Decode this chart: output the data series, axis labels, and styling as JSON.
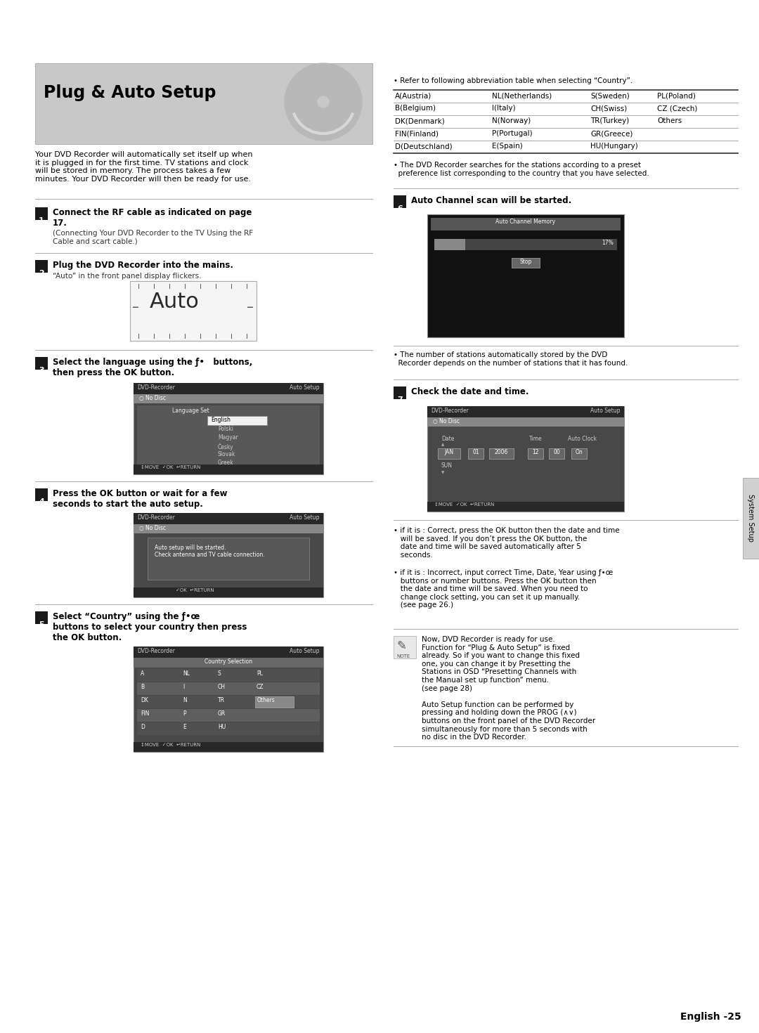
{
  "page_bg": "#ffffff",
  "title": "Plug & Auto Setup",
  "intro_text": "Your DVD Recorder will automatically set itself up when\nit is plugged in for the first time. TV stations and clock\nwill be stored in memory. The process takes a few\nminutes. Your DVD Recorder will then be ready for use.",
  "step1_num": "1",
  "step1_text": "Connect the RF cable as indicated on page\n17.",
  "step1_sub": "(Connecting Your DVD Recorder to the TV Using the RF\nCable and scart cable.)",
  "step2_num": "2",
  "step2_text": "Plug the DVD Recorder into the mains.",
  "step2_sub": "“Auto” in the front panel display flickers.",
  "step3_num": "3",
  "step3_text": "Select the language using the ƒ•   buttons,\nthen press the OK button.",
  "step4_num": "4",
  "step4_text": "Press the OK button or wait for a few\nseconds to start the auto setup.",
  "step5_num": "5",
  "step5_text": "Select “Country” using the ƒ•œ\nbuttons to select your country then press\nthe OK button.",
  "step6_num": "6",
  "step6_text": "Auto Channel scan will be started.",
  "step7_num": "7",
  "step7_text": "Check the date and time.",
  "country_note": "• Refer to following abbreviation table when selecting “Country”.",
  "country_table": [
    [
      "A(Austria)",
      "NL(Netherlands)",
      "S(Sweden)",
      "PL(Poland)"
    ],
    [
      "B(Belgium)",
      "I(Italy)",
      "CH(Swiss)",
      "CZ (Czech)"
    ],
    [
      "DK(Denmark)",
      "N(Norway)",
      "TR(Turkey)",
      "Others"
    ],
    [
      "FIN(Finland)",
      "P(Portugal)",
      "GR(Greece)",
      ""
    ],
    [
      "D(Deutschland)",
      "E(Spain)",
      "HU(Hungary)",
      ""
    ]
  ],
  "preset_note": "• The DVD Recorder searches for the stations according to a preset\n  preference list corresponding to the country that you have selected.",
  "bullet1_correct": "• if it is : Correct, press the OK button then the date and time\n   will be saved. If you don’t press the OK button, the\n   date and time will be saved automatically after 5\n   seconds.",
  "bullet2_incorrect": "• if it is : Incorrect, input correct Time, Date, Year using ƒ•œ\n   buttons or number buttons. Press the OK button then\n   the date and time will be saved. When you need to\n   change clock setting, you can set it up manually.\n   (see page 26.)",
  "note_text": "Now, DVD Recorder is ready for use.\nFunction for “Plug & Auto Setup” is fixed\nalready. So if you want to change this fixed\none, you can change it by Presetting the\nStations in OSD “Presetting Channels with\nthe Manual set up function” menu.\n(see page 28)\n\nAuto Setup function can be performed by\npressing and holding down the PROG (∧∨)\nbuttons on the front panel of the DVD Recorder\nsimultaneously for more than 5 seconds with\nno disc in the DVD Recorder.",
  "footer": "English -25",
  "side_label": "System Setup"
}
